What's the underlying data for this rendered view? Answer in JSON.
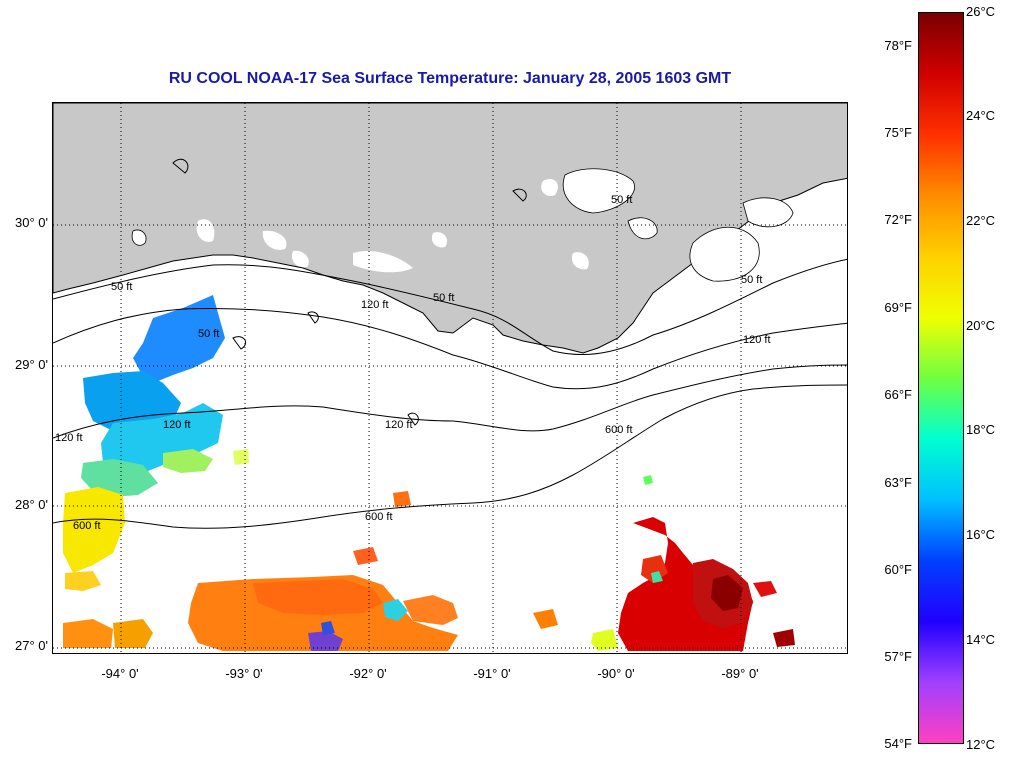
{
  "title": "RU COOL  NOAA-17  Sea Surface Temperature:  January 28, 2005 1603 GMT",
  "map": {
    "lat_labels": [
      "30° 0'",
      "29° 0'",
      "28° 0'",
      "27° 0'"
    ],
    "lon_labels": [
      "-94° 0'",
      "-93° 0'",
      "-92° 0'",
      "-91° 0'",
      "-90° 0'",
      "-89° 0'"
    ],
    "contour_labels": [
      "50 ft",
      "120 ft",
      "600 ft"
    ],
    "land_color": "#c8c8c8"
  },
  "colorbar": {
    "fahrenheit_labels": [
      "78°F",
      "75°F",
      "72°F",
      "69°F",
      "66°F",
      "63°F",
      "60°F",
      "57°F",
      "54°F"
    ],
    "celsius_labels": [
      "26°C",
      "24°C",
      "22°C",
      "20°C",
      "18°C",
      "16°C",
      "14°C",
      "12°C"
    ],
    "colors": [
      "#7a0000",
      "#d00000",
      "#ff3000",
      "#ff8c00",
      "#ffd000",
      "#f0ff00",
      "#70ff40",
      "#00ffd0",
      "#00c0ff",
      "#0040ff",
      "#2000ff",
      "#a040ff",
      "#ff40c0"
    ]
  }
}
